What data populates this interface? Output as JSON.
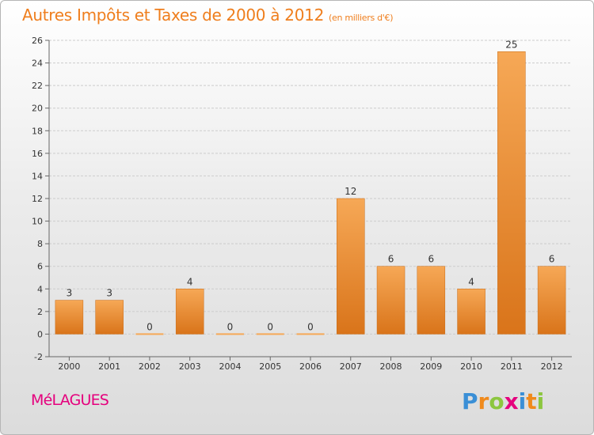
{
  "title": "Autres Impôts et Taxes de 2000 à 2012",
  "subtitle": "(en milliers d'€)",
  "commune": "MéLAGUES",
  "brand": {
    "letters": [
      "P",
      "r",
      "o",
      "x",
      "i",
      "t",
      "i"
    ],
    "colors": [
      "#3a8fd6",
      "#f08a1c",
      "#8cc63f",
      "#e5007d",
      "#3a8fd6",
      "#f08a1c",
      "#8cc63f"
    ]
  },
  "colors": {
    "bar_light": "#f6a856",
    "bar_dark": "#d9741a",
    "axis": "#666666",
    "grid": "#cccccc"
  },
  "chart_data": {
    "type": "bar",
    "categories": [
      "2000",
      "2001",
      "2002",
      "2003",
      "2004",
      "2005",
      "2006",
      "2007",
      "2008",
      "2009",
      "2010",
      "2011",
      "2012"
    ],
    "values": [
      3,
      3,
      0,
      4,
      0,
      0,
      0,
      12,
      6,
      6,
      4,
      25,
      6
    ],
    "title": "Autres Impôts et Taxes de 2000 à 2012",
    "subtitle": "(en milliers d'€)",
    "ylim": [
      -2,
      26
    ],
    "yticks": [
      -2,
      0,
      2,
      4,
      6,
      8,
      10,
      12,
      14,
      16,
      18,
      20,
      22,
      24,
      26
    ],
    "grid": true,
    "data_labels": true
  }
}
